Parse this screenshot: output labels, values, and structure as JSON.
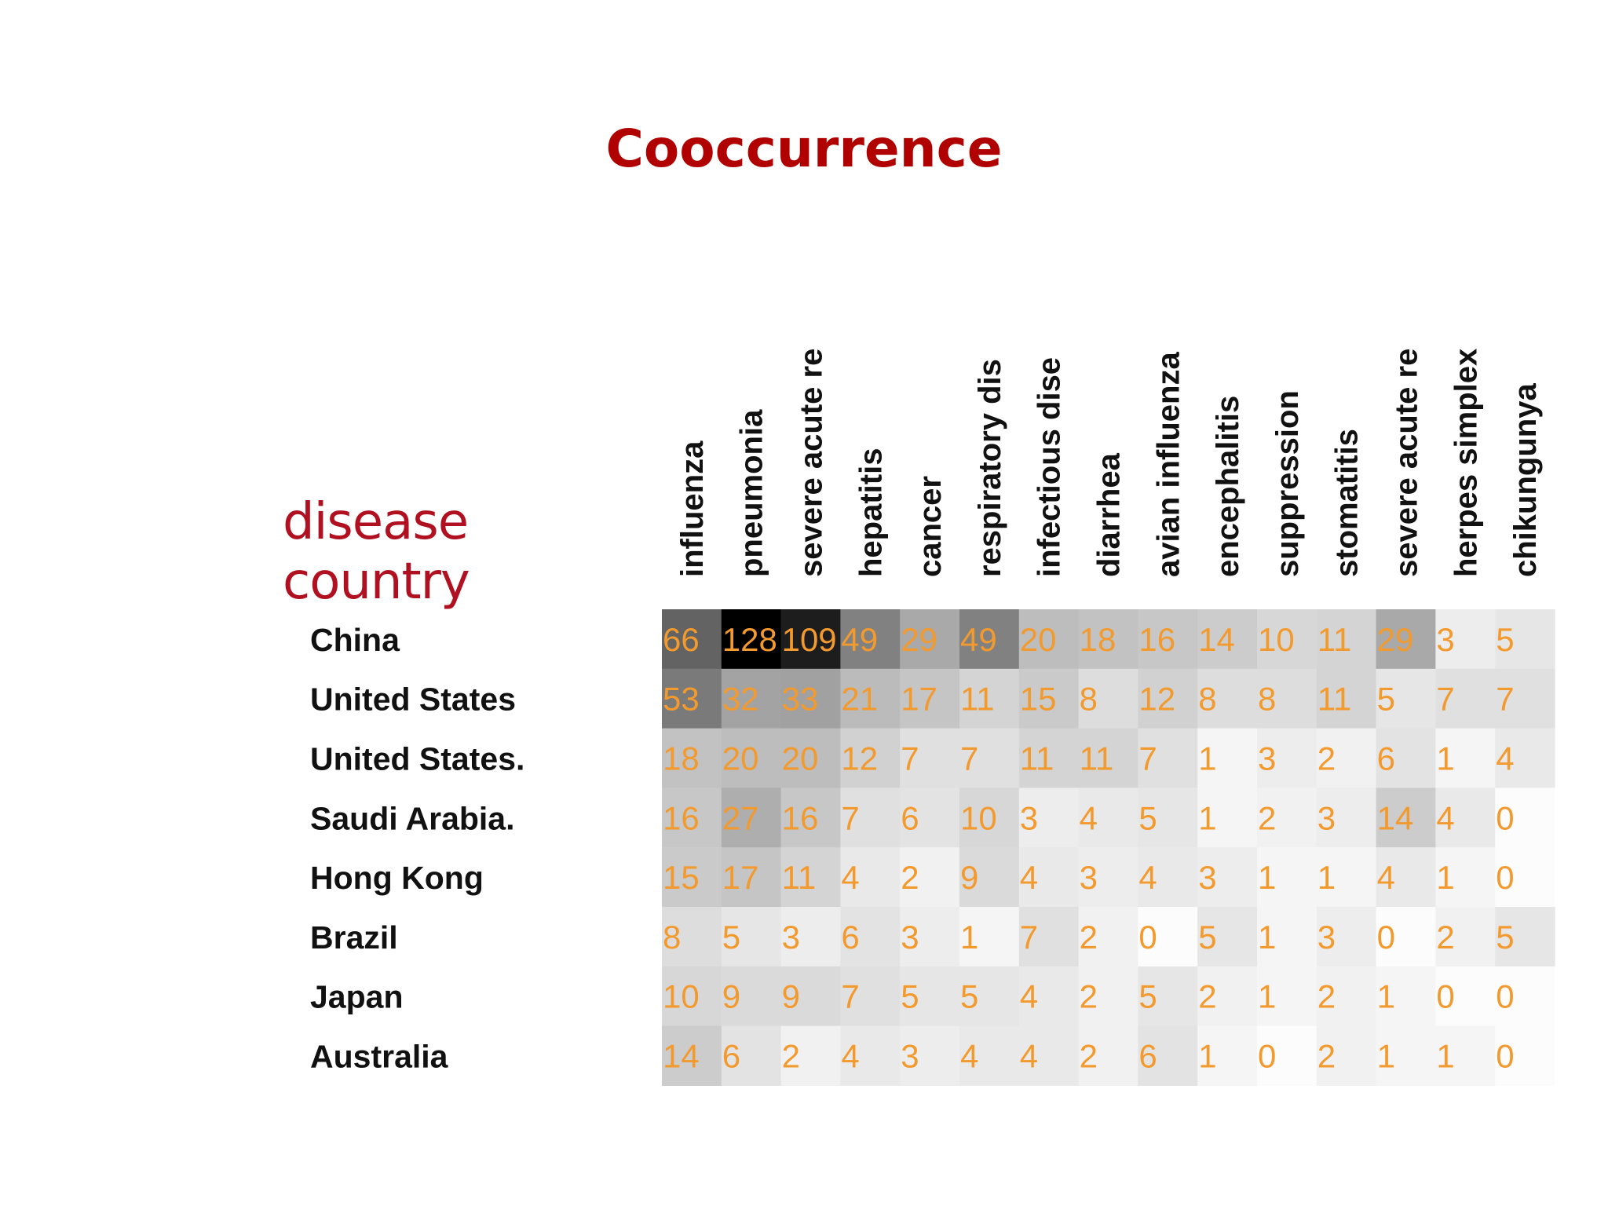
{
  "title": "Cooccurrence",
  "chart_data": {
    "type": "heatmap",
    "row_axis_title": "country",
    "column_axis_title": "disease",
    "columns": [
      "influenza",
      "pneumonia",
      "severe acute re",
      "hepatitis",
      "cancer",
      "respiratory dis",
      "infectious dise",
      "diarrhea",
      "avian influenza",
      "encephalitis",
      "suppression",
      "stomatitis",
      "severe acute re",
      "herpes simplex",
      "chikungunya"
    ],
    "rows": [
      "China",
      "United States",
      "United States.",
      "Saudi Arabia.",
      "Hong Kong",
      "Brazil",
      "Japan",
      "Australia"
    ],
    "values": [
      [
        66,
        128,
        109,
        49,
        29,
        49,
        20,
        18,
        16,
        14,
        10,
        11,
        29,
        3,
        5
      ],
      [
        53,
        32,
        33,
        21,
        17,
        11,
        15,
        8,
        12,
        8,
        8,
        11,
        5,
        7,
        7
      ],
      [
        18,
        20,
        20,
        12,
        7,
        7,
        11,
        11,
        7,
        1,
        3,
        2,
        6,
        1,
        4
      ],
      [
        16,
        27,
        16,
        7,
        6,
        10,
        3,
        4,
        5,
        1,
        2,
        3,
        14,
        4,
        0
      ],
      [
        15,
        17,
        11,
        4,
        2,
        9,
        4,
        3,
        4,
        3,
        1,
        1,
        4,
        1,
        0
      ],
      [
        8,
        5,
        3,
        6,
        3,
        1,
        7,
        2,
        0,
        5,
        1,
        3,
        0,
        2,
        5
      ],
      [
        10,
        9,
        9,
        7,
        5,
        5,
        4,
        2,
        5,
        2,
        1,
        2,
        1,
        0,
        0
      ],
      [
        14,
        6,
        2,
        4,
        3,
        4,
        4,
        2,
        6,
        1,
        0,
        2,
        1,
        1,
        0
      ]
    ],
    "colors": {
      "cell_text": "#f39a2e",
      "scale_low": "#ffffff",
      "scale_high": "#000000"
    }
  }
}
